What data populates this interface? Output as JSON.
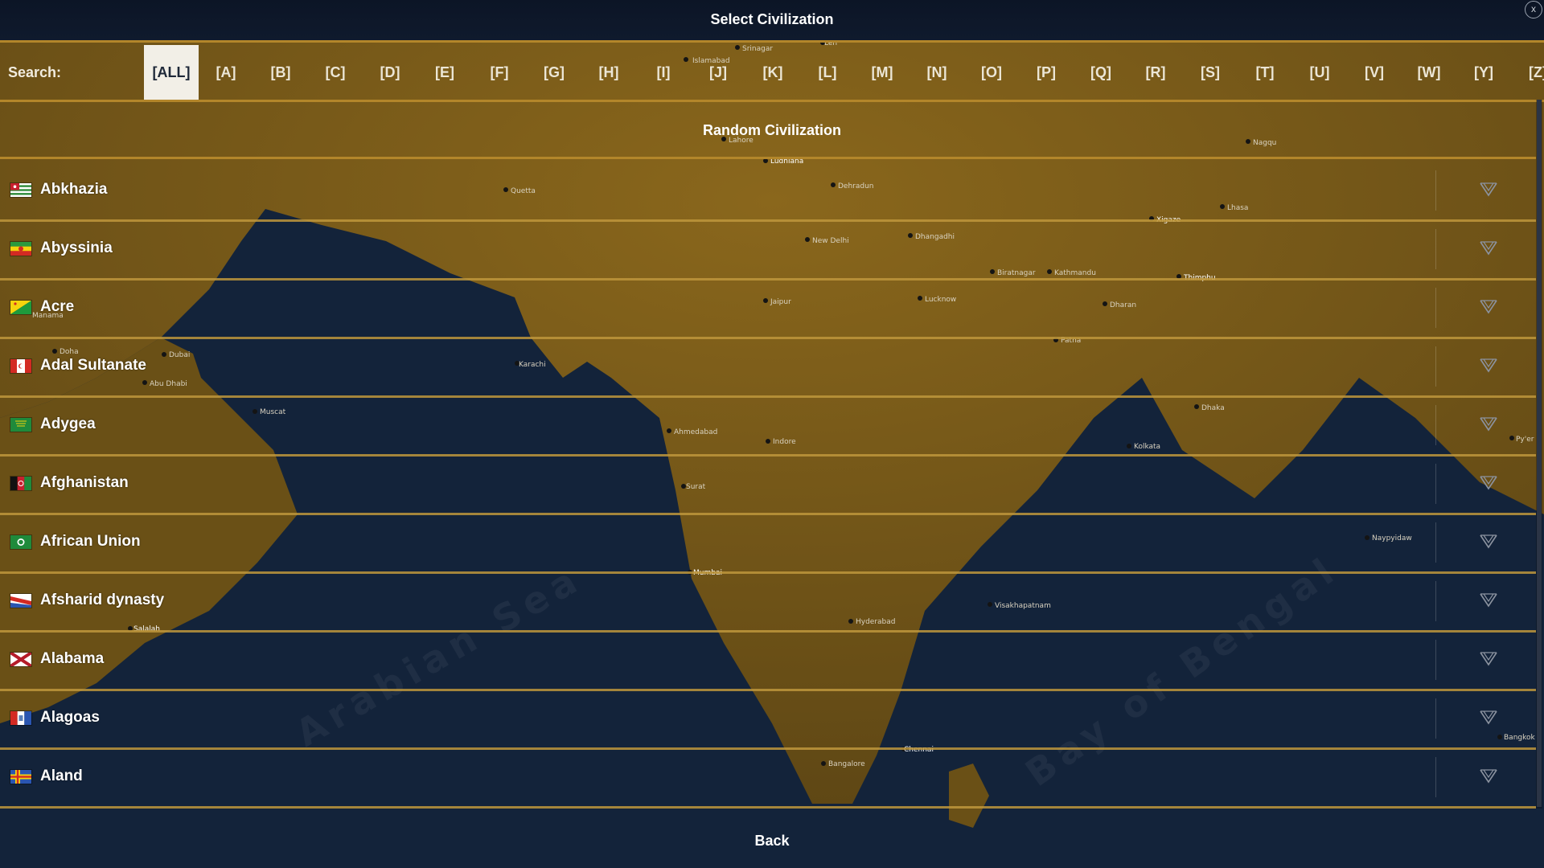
{
  "window": {
    "title": "Select Civilization",
    "close_label": "x"
  },
  "search": {
    "label": "Search:",
    "letters": [
      "[ALL]",
      "[A]",
      "[B]",
      "[C]",
      "[D]",
      "[E]",
      "[F]",
      "[G]",
      "[H]",
      "[I]",
      "[J]",
      "[K]",
      "[L]",
      "[M]",
      "[N]",
      "[O]",
      "[P]",
      "[Q]",
      "[R]",
      "[S]",
      "[T]",
      "[U]",
      "[V]",
      "[W]",
      "[Y]",
      "[Z]"
    ],
    "active_letter": "[ALL]"
  },
  "random_civilization": {
    "label": "Random Civilization"
  },
  "civilizations": [
    {
      "name": "Abkhazia",
      "flag": "abkhazia-flag"
    },
    {
      "name": "Abyssinia",
      "flag": "abyssinia-flag"
    },
    {
      "name": "Acre",
      "flag": "acre-flag"
    },
    {
      "name": "Adal Sultanate",
      "flag": "adal-sultanate-flag"
    },
    {
      "name": "Adygea",
      "flag": "adygea-flag"
    },
    {
      "name": "Afghanistan",
      "flag": "afghanistan-flag"
    },
    {
      "name": "African Union",
      "flag": "african-union-flag"
    },
    {
      "name": "Afsharid dynasty",
      "flag": "afsharid-dynasty-flag"
    },
    {
      "name": "Alabama",
      "flag": "alabama-flag"
    },
    {
      "name": "Alagoas",
      "flag": "alagoas-flag"
    },
    {
      "name": "Aland",
      "flag": "aland-flag"
    }
  ],
  "back": {
    "label": "Back"
  },
  "map_labels": {
    "srinagar": "Srinagar",
    "leh": "Leh",
    "islamabad": "Islamabad",
    "lahore": "Lahore",
    "ludhiana": "Ludhiana",
    "nagqu": "Nagqu",
    "quetta": "Quetta",
    "dehradun": "Dehradun",
    "xigaze": "Xigaze",
    "lhasa": "Lhasa",
    "new_delhi": "New Delhi",
    "dhangadhi": "Dhangadhi",
    "biratnagar": "Biratnagar",
    "kathmandu": "Kathmandu",
    "thimphu": "Thimphu",
    "jaipur": "Jaipur",
    "lucknow": "Lucknow",
    "dharan": "Dharan",
    "manama": "Manama",
    "patna": "Patna",
    "doha": "Doha",
    "dubai": "Dubai",
    "karachi": "Karachi",
    "abu_dhabi": "Abu Dhabi",
    "muscat": "Muscat",
    "dhaka": "Dhaka",
    "ahmedabad": "Ahmedabad",
    "indore": "Indore",
    "kolkata": "Kolkata",
    "pyer": "Py'er",
    "surat": "Surat",
    "naypyidaw": "Naypyidaw",
    "mumbai": "Mumbai",
    "visakhapatnam": "Visakhapatnam",
    "salalah": "Salalah",
    "hyderabad": "Hyderabad",
    "bangkok": "Bangkok",
    "chennai": "Chennai",
    "bangalore": "Bangalore",
    "arabian_sea": "Arabian Sea",
    "bay_of_bengal": "Bay of Bengal"
  },
  "colors": {
    "accent_gold": "#b3862a",
    "land": "#6f5418",
    "sea": "#13233a",
    "panel": "#0c1526"
  }
}
